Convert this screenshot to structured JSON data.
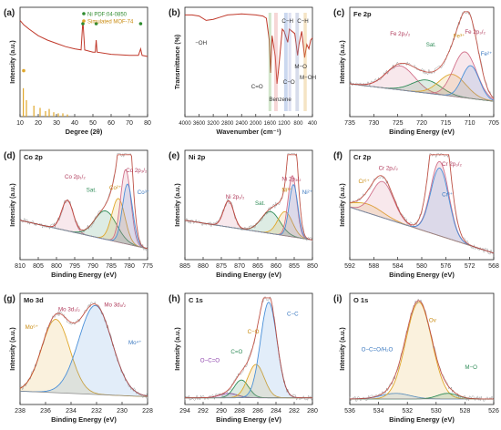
{
  "figure": {
    "panels": [
      {
        "tag": "(a)",
        "title": "",
        "legend": [
          "Ni PDF:04-0850",
          "Simulated MOF-74"
        ],
        "xlabel": "Degree (2θ)",
        "ylabel": "Intensity (a.u.)",
        "ticks": [
          10,
          20,
          30,
          40,
          50,
          60,
          70,
          80
        ],
        "annotations": [],
        "bold_title": false
      },
      {
        "tag": "(b)",
        "title": "",
        "legend": [],
        "xlabel": "Wavenumber (cm⁻¹)",
        "ylabel": "Transmittance (%)",
        "ticks": [
          4000,
          3600,
          3200,
          2800,
          2400,
          2000,
          1600,
          1200,
          800,
          400
        ],
        "annotations": [
          "−OH",
          "C=O",
          "Benzene",
          "C−H",
          "C−H",
          "C−O",
          "M−O",
          "M−OH"
        ],
        "bold_title": false
      },
      {
        "tag": "(c)",
        "title": "Fe 2p",
        "legend": [],
        "xlabel": "Binding Energy (eV)",
        "ylabel": "Intensity (a.u.)",
        "ticks": [
          735,
          730,
          725,
          720,
          715,
          710,
          705
        ],
        "annotations": [
          "Fe 2p₁/₂",
          "Sat.",
          "Fe³⁺",
          "Fe 2p₃/₂",
          "Fe²⁺"
        ],
        "bold_title": true
      },
      {
        "tag": "(d)",
        "title": "Co 2p",
        "legend": [],
        "xlabel": "Binding Energy (eV)",
        "ylabel": "Intensity (a.u.)",
        "ticks": [
          810,
          805,
          800,
          795,
          790,
          785,
          780,
          775
        ],
        "annotations": [
          "Co 2p₁/₂",
          "Sat.",
          "Co²⁺",
          "Co 2p₃/₂",
          "Co³⁺"
        ],
        "bold_title": true
      },
      {
        "tag": "(e)",
        "title": "Ni 2p",
        "legend": [],
        "xlabel": "Binding Energy (eV)",
        "ylabel": "Intensity (a.u.)",
        "ticks": [
          885,
          880,
          875,
          870,
          865,
          860,
          855,
          850
        ],
        "annotations": [
          "Ni 2p₁/₂",
          "Sat.",
          "Ni³⁺",
          "Ni 2p₃/₂",
          "Ni²⁺"
        ],
        "bold_title": true
      },
      {
        "tag": "(f)",
        "title": "Cr 2p",
        "legend": [],
        "xlabel": "Binding Energy (eV)",
        "ylabel": "Intensity (a.u.)",
        "ticks": [
          592,
          588,
          584,
          580,
          576,
          572,
          568
        ],
        "annotations": [
          "Cr⁶⁺",
          "Cr 2p₁/₂",
          "Cr 2p₃/₂",
          "Cr³⁺"
        ],
        "bold_title": true
      },
      {
        "tag": "(g)",
        "title": "Mo 3d",
        "legend": [],
        "xlabel": "Binding Energy (eV)",
        "ylabel": "Intensity (a.u.)",
        "ticks": [
          238,
          236,
          234,
          232,
          230,
          228
        ],
        "annotations": [
          "Mo 3d₃/₂",
          "Mo 3d₅/₂",
          "Mo⁶⁺",
          "Mo⁴⁺"
        ],
        "bold_title": true
      },
      {
        "tag": "(h)",
        "title": "C 1s",
        "legend": [],
        "xlabel": "Binding Energy (eV)",
        "ylabel": "Intensity (a.u.)",
        "ticks": [
          294,
          292,
          290,
          288,
          286,
          284,
          282,
          280
        ],
        "annotations": [
          "C−C",
          "C−O",
          "C=O",
          "O−C=O"
        ],
        "bold_title": true
      },
      {
        "tag": "(i)",
        "title": "O 1s",
        "legend": [],
        "xlabel": "Binding Energy (eV)",
        "ylabel": "Intensity (a.u.)",
        "ticks": [
          536,
          534,
          532,
          530,
          528,
          526
        ],
        "annotations": [
          "Ov",
          "O−C=O/H₂O",
          "M−O"
        ],
        "bold_title": true
      }
    ]
  },
  "chart_data": [
    {
      "panel": "(a)",
      "type": "line",
      "xlabel": "Degree (2θ)",
      "ylabel": "Intensity (a.u.)",
      "xlim": [
        10,
        80
      ],
      "series": [
        {
          "name": "",
          "color": "#c0392b",
          "points": [
            [
              10,
              0.88
            ],
            [
              12,
              0.84
            ],
            [
              15,
              0.8
            ],
            [
              20,
              0.74
            ],
            [
              25,
              0.7
            ],
            [
              30,
              0.67
            ],
            [
              35,
              0.64
            ],
            [
              40,
              0.62
            ],
            [
              43.5,
              0.61
            ],
            [
              44.5,
              0.88
            ],
            [
              45.5,
              0.61
            ],
            [
              50,
              0.59
            ],
            [
              51.3,
              0.59
            ],
            [
              51.8,
              0.7
            ],
            [
              52.3,
              0.59
            ],
            [
              60,
              0.57
            ],
            [
              70,
              0.56
            ],
            [
              75,
              0.56
            ],
            [
              76.2,
              0.62
            ],
            [
              77,
              0.56
            ],
            [
              80,
              0.55
            ]
          ]
        }
      ],
      "markers": [
        {
          "x": 44.5,
          "label_ref": "Ni PDF:04-0850",
          "color": "#2e8b2e"
        },
        {
          "x": 51.8,
          "label_ref": "Ni PDF:04-0850",
          "color": "#2e8b2e"
        },
        {
          "x": 76.2,
          "label_ref": "Ni PDF:04-0850",
          "color": "#2e8b2e"
        },
        {
          "x": 12.0,
          "label_ref": "Simulated MOF-74",
          "color": "#e0a72a"
        }
      ],
      "sticks": [
        {
          "series": "Simulated MOF-74",
          "color": "#e0a72a",
          "x": [
            11.8,
            13.5,
            17.6,
            21.0,
            24.0,
            26.0,
            28.5,
            31.0,
            33.5,
            36.0
          ],
          "h": [
            0.26,
            0.15,
            0.1,
            0.08,
            0.05,
            0.07,
            0.04,
            0.03,
            0.03,
            0.02
          ]
        }
      ]
    },
    {
      "panel": "(b)",
      "type": "line",
      "xlabel": "Wavenumber (cm⁻¹)",
      "ylabel": "Transmittance (%)",
      "xlim": [
        4000,
        400
      ],
      "series": [
        {
          "name": "",
          "color": "#c0392b",
          "points": [
            [
              4000,
              0.93
            ],
            [
              3800,
              0.93
            ],
            [
              3600,
              0.92
            ],
            [
              3400,
              0.88
            ],
            [
              3200,
              0.89
            ],
            [
              3000,
              0.91
            ],
            [
              2800,
              0.93
            ],
            [
              2400,
              0.94
            ],
            [
              2000,
              0.93
            ],
            [
              1800,
              0.92
            ],
            [
              1700,
              0.9
            ],
            [
              1620,
              0.7
            ],
            [
              1580,
              0.4
            ],
            [
              1540,
              0.74
            ],
            [
              1450,
              0.55
            ],
            [
              1400,
              0.3
            ],
            [
              1360,
              0.42
            ],
            [
              1250,
              0.8
            ],
            [
              1200,
              0.78
            ],
            [
              1100,
              0.68
            ],
            [
              1050,
              0.8
            ],
            [
              900,
              0.76
            ],
            [
              820,
              0.56
            ],
            [
              780,
              0.66
            ],
            [
              700,
              0.78
            ],
            [
              620,
              0.54
            ],
            [
              560,
              0.66
            ],
            [
              500,
              0.62
            ],
            [
              450,
              0.7
            ],
            [
              400,
              0.72
            ]
          ]
        }
      ],
      "bands": [
        {
          "label": "C=O",
          "from": 1640,
          "to": 1560,
          "color": "#7fb86a"
        },
        {
          "label": "Benzene",
          "from": 1480,
          "to": 1380,
          "color": "#e48a8a"
        },
        {
          "label": "C−H",
          "from": 1200,
          "to": 1100,
          "color": "#6b8fd1"
        },
        {
          "label": "C−O",
          "from": 1080,
          "to": 1000,
          "color": "#9fa7d8"
        },
        {
          "label": "M−O",
          "from": 880,
          "to": 780,
          "color": "#8d9ac7"
        },
        {
          "label": "M−OH",
          "from": 650,
          "to": 560,
          "color": "#e3b35a"
        }
      ]
    },
    {
      "panel": "(c)",
      "type": "area",
      "xlim": [
        735,
        705
      ],
      "ylim": [
        0,
        1
      ],
      "xlabel": "Binding Energy (eV)",
      "ylabel": "Intensity (a.u.)",
      "baseline": [
        [
          735,
          0.3
        ],
        [
          705,
          0.14
        ]
      ],
      "peaks": [
        {
          "label": "Fe 2p₁/₂",
          "center": 724.5,
          "height": 0.22,
          "width": 3.0,
          "color": "#d1708a"
        },
        {
          "label": "Sat.",
          "center": 719.0,
          "height": 0.12,
          "width": 3.0,
          "color": "#2e8b57"
        },
        {
          "label": "Fe³⁺",
          "center": 713.6,
          "height": 0.2,
          "width": 2.8,
          "color": "#e0a72a"
        },
        {
          "label": "Fe 2p₃/₂",
          "center": 711.0,
          "height": 0.42,
          "width": 2.4,
          "color": "#d1708a"
        },
        {
          "label": "Fe²⁺",
          "center": 709.8,
          "height": 0.3,
          "width": 1.8,
          "color": "#4a90d9"
        }
      ]
    },
    {
      "panel": "(d)",
      "type": "area",
      "xlim": [
        810,
        775
      ],
      "ylim": [
        0,
        1
      ],
      "xlabel": "Binding Energy (eV)",
      "ylabel": "Intensity (a.u.)",
      "baseline": [
        [
          810,
          0.36
        ],
        [
          775,
          0.1
        ]
      ],
      "peaks": [
        {
          "label": "Co 2p₁/₂",
          "center": 797.0,
          "height": 0.28,
          "width": 1.6,
          "color": "#d1708a"
        },
        {
          "label": "Sat.",
          "center": 786.5,
          "height": 0.26,
          "width": 3.0,
          "color": "#2e8b57"
        },
        {
          "label": "Co²⁺",
          "center": 783.0,
          "height": 0.4,
          "width": 1.8,
          "color": "#e0a72a"
        },
        {
          "label": "Co 2p₃/₂",
          "center": 781.0,
          "height": 0.68,
          "width": 1.4,
          "color": "#d1708a"
        },
        {
          "label": "Co³⁺",
          "center": 780.5,
          "height": 0.55,
          "width": 1.4,
          "color": "#4a90d9"
        }
      ]
    },
    {
      "panel": "(e)",
      "type": "area",
      "xlim": [
        885,
        850
      ],
      "ylim": [
        0,
        1
      ],
      "xlabel": "Binding Energy (eV)",
      "ylabel": "Intensity (a.u.)",
      "baseline": [
        [
          885,
          0.36
        ],
        [
          850,
          0.18
        ]
      ],
      "peaks": [
        {
          "label": "Ni 2p₁/₂",
          "center": 873.0,
          "height": 0.24,
          "width": 1.4,
          "color": "#d1708a"
        },
        {
          "label": "Sat.",
          "center": 861.5,
          "height": 0.2,
          "width": 2.6,
          "color": "#2e8b57"
        },
        {
          "label": "Ni³⁺",
          "center": 857.5,
          "height": 0.22,
          "width": 2.0,
          "color": "#e0a72a"
        },
        {
          "label": "Ni 2p₃/₂",
          "center": 855.5,
          "height": 0.56,
          "width": 1.2,
          "color": "#d1708a"
        },
        {
          "label": "Ni²⁺",
          "center": 855.2,
          "height": 0.48,
          "width": 1.2,
          "color": "#4a90d9"
        }
      ]
    },
    {
      "panel": "(f)",
      "type": "area",
      "xlim": [
        592,
        568
      ],
      "ylim": [
        0,
        1
      ],
      "xlabel": "Binding Energy (eV)",
      "ylabel": "Intensity (a.u.)",
      "baseline": [
        [
          592,
          0.48
        ],
        [
          568,
          0.06
        ]
      ],
      "peaks": [
        {
          "label": "Cr⁶⁺",
          "center": 589.0,
          "height": 0.08,
          "width": 2.5,
          "color": "#e0a72a"
        },
        {
          "label": "Cr 2p₁/₂",
          "center": 586.5,
          "height": 0.33,
          "width": 1.8,
          "color": "#d1708a"
        },
        {
          "label": "Cr 2p₃/₂",
          "center": 577.0,
          "height": 0.68,
          "width": 1.5,
          "color": "#d1708a"
        },
        {
          "label": "Cr³⁺",
          "center": 577.0,
          "height": 0.62,
          "width": 1.5,
          "color": "#4a90d9"
        }
      ]
    },
    {
      "panel": "(g)",
      "type": "area",
      "xlim": [
        238,
        228
      ],
      "ylim": [
        0,
        1
      ],
      "xlabel": "Binding Energy (eV)",
      "ylabel": "Intensity (a.u.)",
      "baseline": [
        [
          238,
          0.12
        ],
        [
          228,
          0.07
        ]
      ],
      "peaks": [
        {
          "label": "Mo 3d₃/₂",
          "center": 235.2,
          "height": 0.66,
          "width": 1.1,
          "color": "#e0a72a"
        },
        {
          "label": "Mo 3d₅/₂",
          "center": 232.1,
          "height": 0.8,
          "width": 1.3,
          "color": "#4a90d9"
        }
      ]
    },
    {
      "panel": "(h)",
      "type": "area",
      "xlim": [
        294,
        280
      ],
      "ylim": [
        0,
        1
      ],
      "xlabel": "Binding Energy (eV)",
      "ylabel": "Intensity (a.u.)",
      "baseline": [
        [
          294,
          0.06
        ],
        [
          280,
          0.06
        ]
      ],
      "peaks": [
        {
          "label": "O−C=O",
          "center": 289.2,
          "height": 0.04,
          "width": 1.0,
          "color": "#8e44ad"
        },
        {
          "label": "C=O",
          "center": 287.8,
          "height": 0.16,
          "width": 0.8,
          "color": "#2e8b57"
        },
        {
          "label": "C−O",
          "center": 286.2,
          "height": 0.3,
          "width": 0.9,
          "color": "#e0a72a"
        },
        {
          "label": "C−C",
          "center": 284.8,
          "height": 0.86,
          "width": 0.9,
          "color": "#4a90d9"
        }
      ]
    },
    {
      "panel": "(i)",
      "type": "area",
      "xlim": [
        536,
        526
      ],
      "ylim": [
        0,
        1
      ],
      "xlabel": "Binding Energy (eV)",
      "ylabel": "Intensity (a.u.)",
      "baseline": [
        [
          536,
          0.05
        ],
        [
          526,
          0.05
        ]
      ],
      "peaks": [
        {
          "label": "O−C=O/H₂O",
          "center": 532.8,
          "height": 0.05,
          "width": 1.0,
          "color": "#4a90d9"
        },
        {
          "label": "Ov",
          "center": 531.2,
          "height": 0.87,
          "width": 0.9,
          "color": "#e0a72a"
        },
        {
          "label": "M−O",
          "center": 529.2,
          "height": 0.05,
          "width": 0.7,
          "color": "#2e8b57"
        }
      ]
    }
  ]
}
